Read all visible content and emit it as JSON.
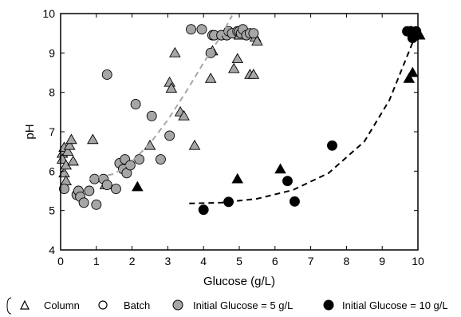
{
  "chart_data": {
    "type": "scatter",
    "xlabel": "Glucose (g/L)",
    "ylabel": "pH",
    "xlim": [
      0,
      10
    ],
    "ylim": [
      4,
      10
    ],
    "xticks": [
      0,
      1,
      2,
      3,
      4,
      5,
      6,
      7,
      8,
      9,
      10
    ],
    "yticks": [
      4,
      5,
      6,
      7,
      8,
      9,
      10
    ],
    "grid": false,
    "legend_position": "bottom",
    "legend": [
      {
        "label": "Column",
        "marker": "triangle-open"
      },
      {
        "label": "Batch",
        "marker": "circle-open"
      },
      {
        "label": "Initial Glucose = 5 g/L",
        "marker": "circle-gray"
      },
      {
        "label": "Initial Glucose = 10 g/L",
        "marker": "circle-black"
      }
    ],
    "colors": {
      "gray_fill": "#a6a6a6",
      "black_fill": "#000000",
      "gray_fit": "#a6a6a6",
      "black_fit": "#000000"
    },
    "series": [
      {
        "marker": "triangle",
        "fill": "gray",
        "points": [
          [
            0.05,
            6.45
          ],
          [
            0.05,
            6.3
          ],
          [
            0.1,
            6.6
          ],
          [
            0.1,
            5.95
          ],
          [
            0.15,
            6.15
          ],
          [
            0.15,
            5.75
          ],
          [
            0.2,
            6.5
          ],
          [
            0.25,
            6.65
          ],
          [
            0.3,
            6.8
          ],
          [
            0.35,
            6.25
          ],
          [
            0.9,
            6.8
          ],
          [
            1.25,
            5.65
          ],
          [
            2.5,
            6.65
          ],
          [
            3.05,
            8.25
          ],
          [
            3.1,
            8.1
          ],
          [
            3.2,
            9.0
          ],
          [
            3.35,
            7.5
          ],
          [
            3.45,
            7.4
          ],
          [
            3.75,
            6.65
          ],
          [
            4.2,
            8.35
          ],
          [
            4.25,
            9.05
          ],
          [
            4.85,
            8.6
          ],
          [
            4.95,
            8.85
          ],
          [
            5.0,
            9.45
          ],
          [
            5.3,
            8.45
          ],
          [
            5.4,
            8.45
          ],
          [
            5.45,
            9.4
          ],
          [
            5.5,
            9.3
          ]
        ]
      },
      {
        "marker": "circle",
        "fill": "gray",
        "points": [
          [
            0.1,
            5.55
          ],
          [
            0.45,
            5.4
          ],
          [
            0.5,
            5.5
          ],
          [
            0.55,
            5.35
          ],
          [
            0.65,
            5.2
          ],
          [
            0.8,
            5.5
          ],
          [
            0.95,
            5.8
          ],
          [
            1.0,
            5.15
          ],
          [
            1.2,
            5.8
          ],
          [
            1.3,
            5.65
          ],
          [
            1.3,
            8.45
          ],
          [
            1.55,
            5.55
          ],
          [
            1.65,
            6.2
          ],
          [
            1.75,
            6.05
          ],
          [
            1.8,
            6.3
          ],
          [
            1.85,
            5.95
          ],
          [
            1.95,
            6.15
          ],
          [
            2.1,
            7.7
          ],
          [
            2.2,
            6.3
          ],
          [
            2.55,
            7.4
          ],
          [
            2.8,
            6.3
          ],
          [
            3.05,
            6.9
          ],
          [
            3.65,
            9.6
          ],
          [
            3.95,
            9.6
          ],
          [
            4.2,
            9.0
          ],
          [
            4.25,
            9.45
          ],
          [
            4.3,
            9.45
          ],
          [
            4.5,
            9.45
          ],
          [
            4.65,
            9.45
          ],
          [
            4.7,
            9.55
          ],
          [
            4.8,
            9.5
          ],
          [
            4.95,
            9.55
          ],
          [
            5.0,
            9.55
          ],
          [
            5.05,
            9.5
          ],
          [
            5.1,
            9.6
          ],
          [
            5.2,
            9.45
          ],
          [
            5.3,
            9.5
          ],
          [
            5.4,
            9.5
          ]
        ]
      },
      {
        "marker": "triangle",
        "fill": "black",
        "points": [
          [
            2.15,
            5.6
          ],
          [
            4.95,
            5.8
          ],
          [
            6.15,
            6.05
          ],
          [
            9.75,
            8.35
          ],
          [
            9.85,
            8.5
          ],
          [
            9.8,
            9.55
          ],
          [
            9.9,
            9.5
          ],
          [
            10.0,
            9.5
          ],
          [
            10.05,
            9.45
          ]
        ]
      },
      {
        "marker": "circle",
        "fill": "black",
        "points": [
          [
            4.0,
            5.02
          ],
          [
            4.7,
            5.22
          ],
          [
            6.35,
            5.75
          ],
          [
            6.55,
            5.23
          ],
          [
            7.6,
            6.65
          ],
          [
            9.7,
            9.55
          ],
          [
            9.8,
            9.55
          ],
          [
            9.85,
            9.38
          ],
          [
            9.95,
            9.55
          ],
          [
            9.95,
            9.45
          ]
        ]
      }
    ],
    "fits": [
      {
        "color": "gray",
        "style": "dashed",
        "points": [
          [
            0.8,
            5.8
          ],
          [
            1.5,
            5.93
          ],
          [
            2.0,
            6.25
          ],
          [
            2.5,
            6.7
          ],
          [
            3.0,
            7.3
          ],
          [
            3.5,
            8.0
          ],
          [
            4.0,
            8.75
          ],
          [
            4.5,
            9.45
          ],
          [
            4.8,
            9.95
          ]
        ]
      },
      {
        "color": "black",
        "style": "dashed",
        "points": [
          [
            3.6,
            5.18
          ],
          [
            4.5,
            5.2
          ],
          [
            5.5,
            5.3
          ],
          [
            6.5,
            5.52
          ],
          [
            7.5,
            5.95
          ],
          [
            8.5,
            6.75
          ],
          [
            9.2,
            7.8
          ],
          [
            9.6,
            8.7
          ],
          [
            10.0,
            9.6
          ]
        ]
      }
    ]
  }
}
